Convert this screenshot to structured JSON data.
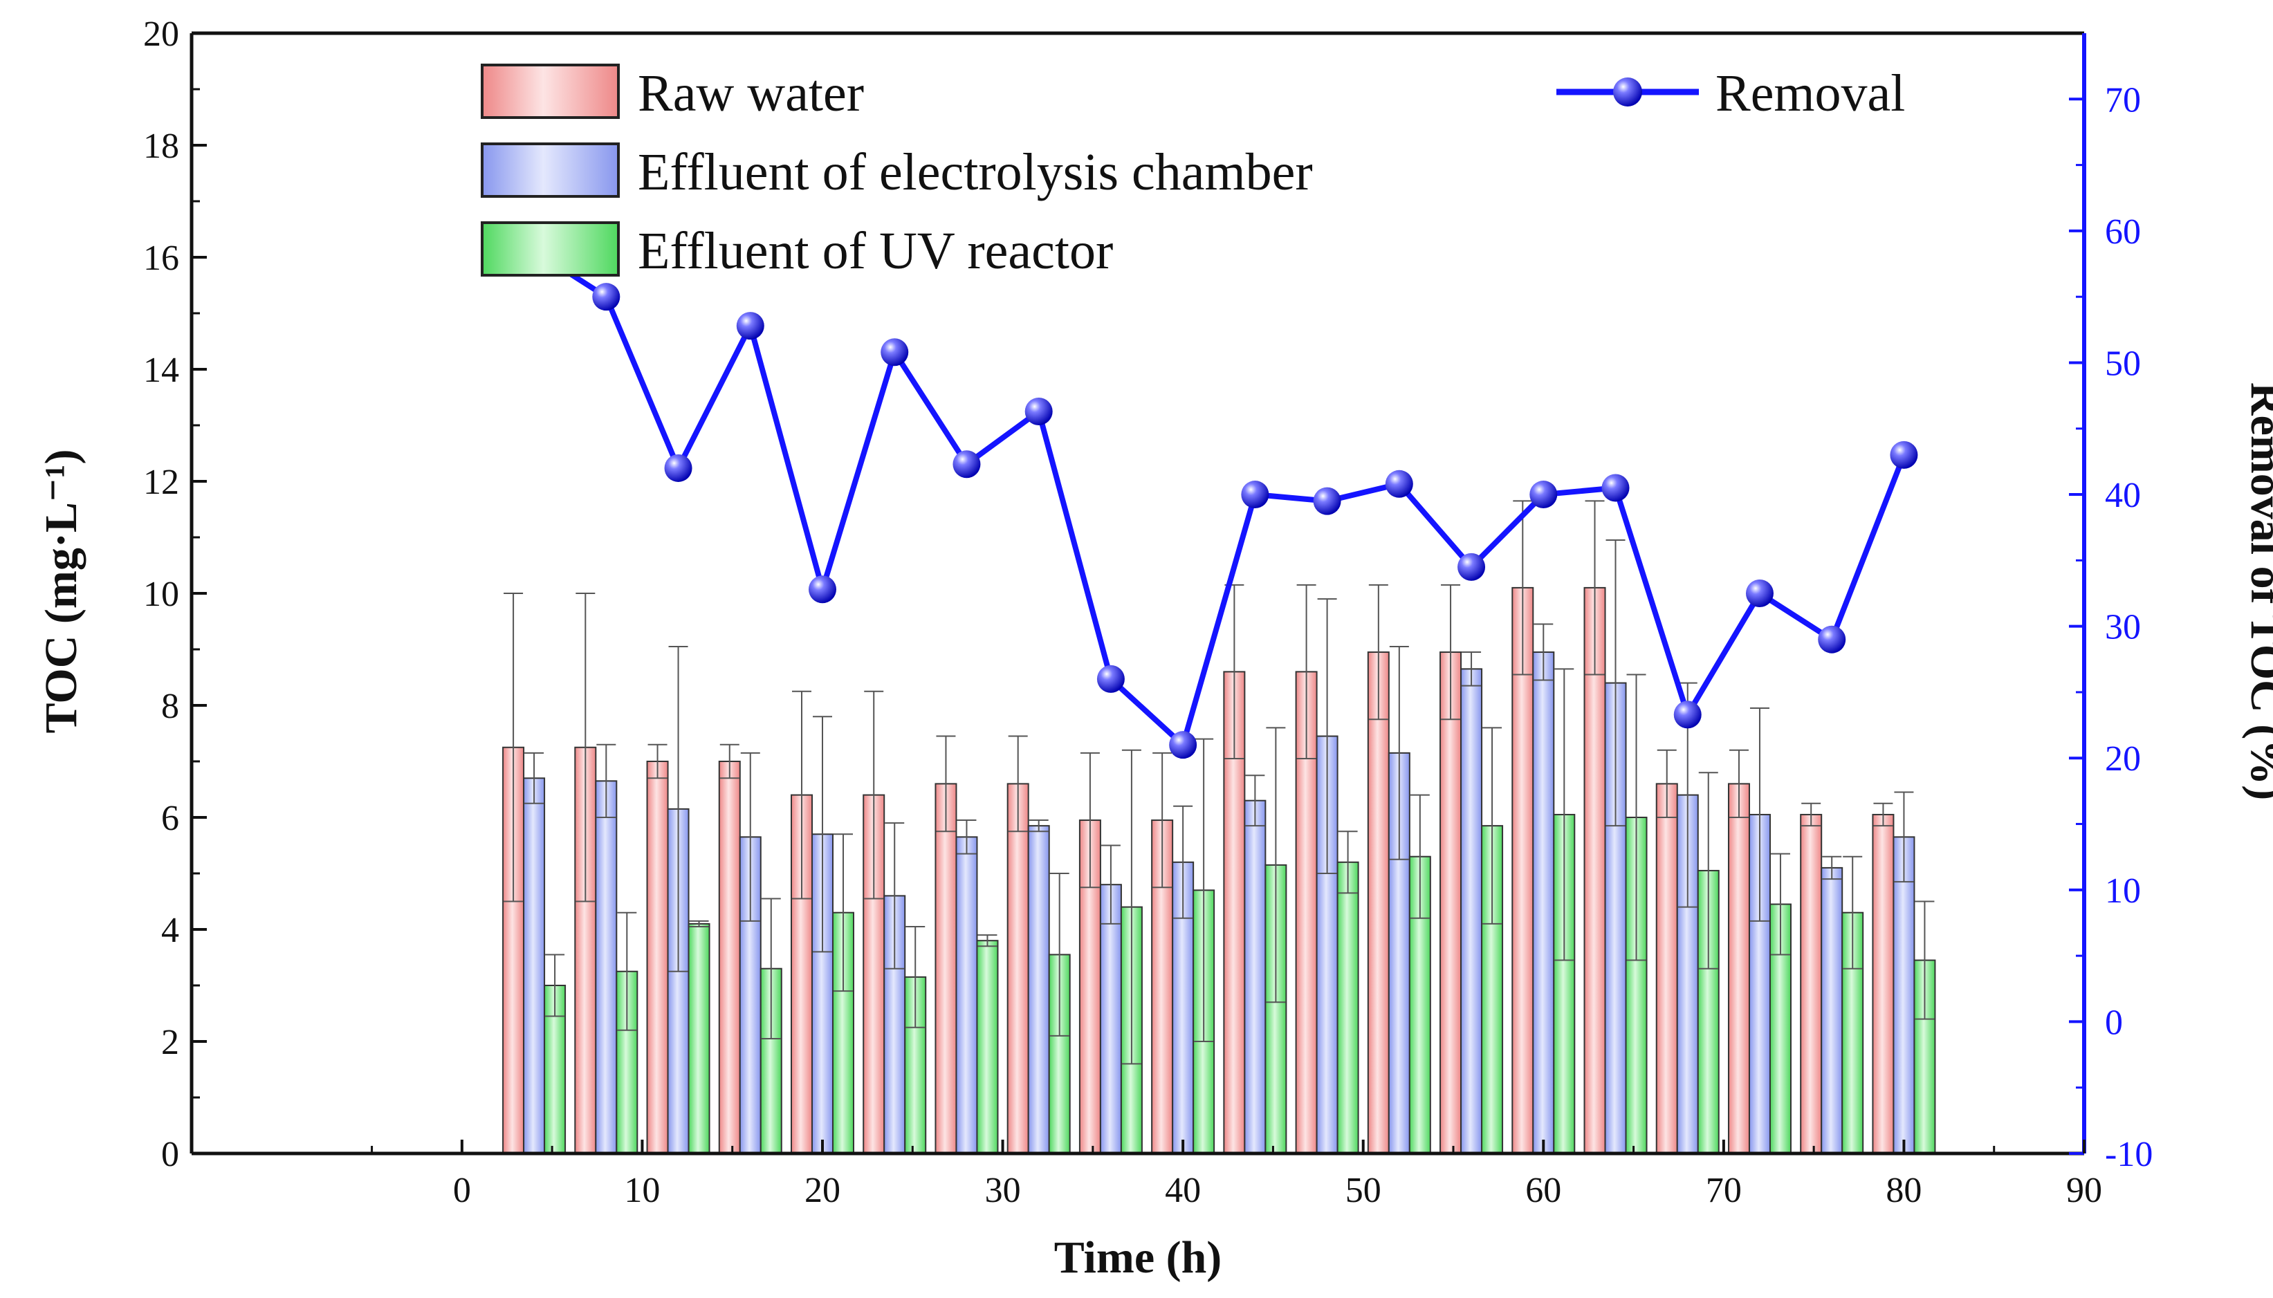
{
  "chart_data": {
    "type": "bar",
    "xlabel": "Time (h)",
    "ylabel": "TOC (mg·L⁻¹)",
    "ylabel_right": "Removal of TOC (%)",
    "xlim": [
      -15,
      90
    ],
    "ylim": [
      0,
      20
    ],
    "ylim_right": [
      -10,
      75
    ],
    "x_ticks": [
      0,
      10,
      20,
      30,
      40,
      50,
      60,
      70,
      80,
      90
    ],
    "y_ticks": [
      0,
      2,
      4,
      6,
      8,
      10,
      12,
      14,
      16,
      18,
      20
    ],
    "y_ticks_right": [
      -10,
      0,
      10,
      20,
      30,
      40,
      50,
      60,
      70
    ],
    "x": [
      4,
      8,
      12,
      16,
      20,
      24,
      28,
      32,
      36,
      40,
      44,
      48,
      52,
      56,
      60,
      64,
      68,
      72,
      76,
      80
    ],
    "series": [
      {
        "name": "Raw water",
        "color": "#f4a0a0",
        "values": [
          7.25,
          7.25,
          7.0,
          7.0,
          6.4,
          6.4,
          6.6,
          6.6,
          5.95,
          5.95,
          8.6,
          8.6,
          8.95,
          8.95,
          10.1,
          10.1,
          6.6,
          6.6,
          6.05,
          6.05
        ],
        "errors": [
          2.75,
          2.75,
          0.3,
          0.3,
          1.85,
          1.85,
          0.85,
          0.85,
          1.2,
          1.2,
          1.55,
          1.55,
          1.2,
          1.2,
          1.55,
          1.55,
          0.6,
          0.6,
          0.2,
          0.2
        ]
      },
      {
        "name": "Effluent of electrolysis chamber",
        "color": "#a0b0f4",
        "values": [
          6.7,
          6.65,
          6.15,
          5.65,
          5.7,
          4.6,
          5.65,
          5.85,
          4.8,
          5.2,
          6.3,
          7.45,
          7.15,
          8.65,
          8.95,
          8.4,
          6.4,
          6.05,
          5.1,
          5.65
        ],
        "errors": [
          0.45,
          0.65,
          2.9,
          1.5,
          2.1,
          1.3,
          0.3,
          0.1,
          0.7,
          1.0,
          0.45,
          2.45,
          1.9,
          0.3,
          0.5,
          2.55,
          2.0,
          1.9,
          0.2,
          0.8
        ]
      },
      {
        "name": "Effluent of UV reactor",
        "color": "#7ee88a",
        "values": [
          3.0,
          3.25,
          4.1,
          3.3,
          4.3,
          3.15,
          3.8,
          3.55,
          4.4,
          4.7,
          5.15,
          5.2,
          5.3,
          5.85,
          6.05,
          6.0,
          5.05,
          4.45,
          4.3,
          3.45
        ],
        "errors": [
          0.55,
          1.05,
          0.05,
          1.25,
          1.4,
          0.9,
          0.1,
          1.45,
          2.8,
          2.7,
          2.45,
          0.55,
          1.1,
          1.75,
          2.6,
          2.55,
          1.75,
          0.9,
          1.0,
          1.05
        ]
      }
    ],
    "line_series": {
      "name": "Removal",
      "color": "#1414ff",
      "axis": "right",
      "values": [
        58.5,
        55.0,
        42.0,
        52.8,
        32.8,
        50.8,
        42.3,
        46.3,
        26.0,
        21.0,
        40.0,
        39.5,
        40.8,
        34.5,
        40.0,
        40.5,
        23.3,
        32.5,
        29.0,
        43.0
      ]
    },
    "legend": {
      "bars": [
        "Raw water",
        "Effluent of electrolysis chamber",
        "Effluent of UV reactor"
      ],
      "line": "Removal",
      "placement": "top"
    }
  }
}
